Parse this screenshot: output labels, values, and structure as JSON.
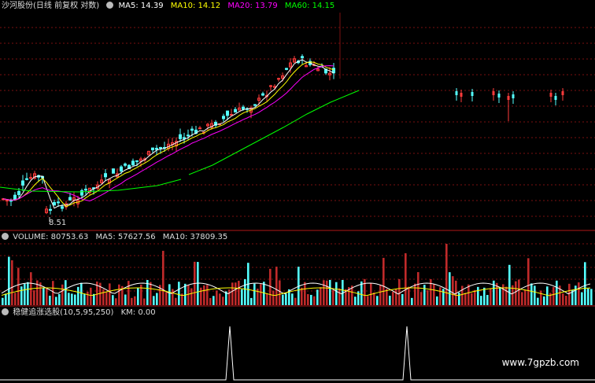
{
  "header": {
    "title": "沙河股份(日线 前复权 对数)",
    "ma5": "MA5: 14.39",
    "ma10": "MA10: 14.12",
    "ma20": "MA20: 13.79",
    "ma60": "MA60: 14.15"
  },
  "price_panel": {
    "low_label": "8.51"
  },
  "volume_panel": {
    "title": "VOLUME: 80753.63",
    "ma5": "MA5: 57627.56",
    "ma10": "MA10: 37809.35"
  },
  "indicator_panel": {
    "title": "稳健追涨选股(10,5,95,250)",
    "km": "KM: 0.00"
  },
  "watermark": "www.7gpzb.com",
  "colors": {
    "up": "#ff3b3b",
    "down": "#54ffff",
    "ma5": "#ffffff",
    "ma10": "#ffff00",
    "ma20": "#ff00ff",
    "ma60": "#00ff00",
    "grid": "#7a1010"
  }
}
